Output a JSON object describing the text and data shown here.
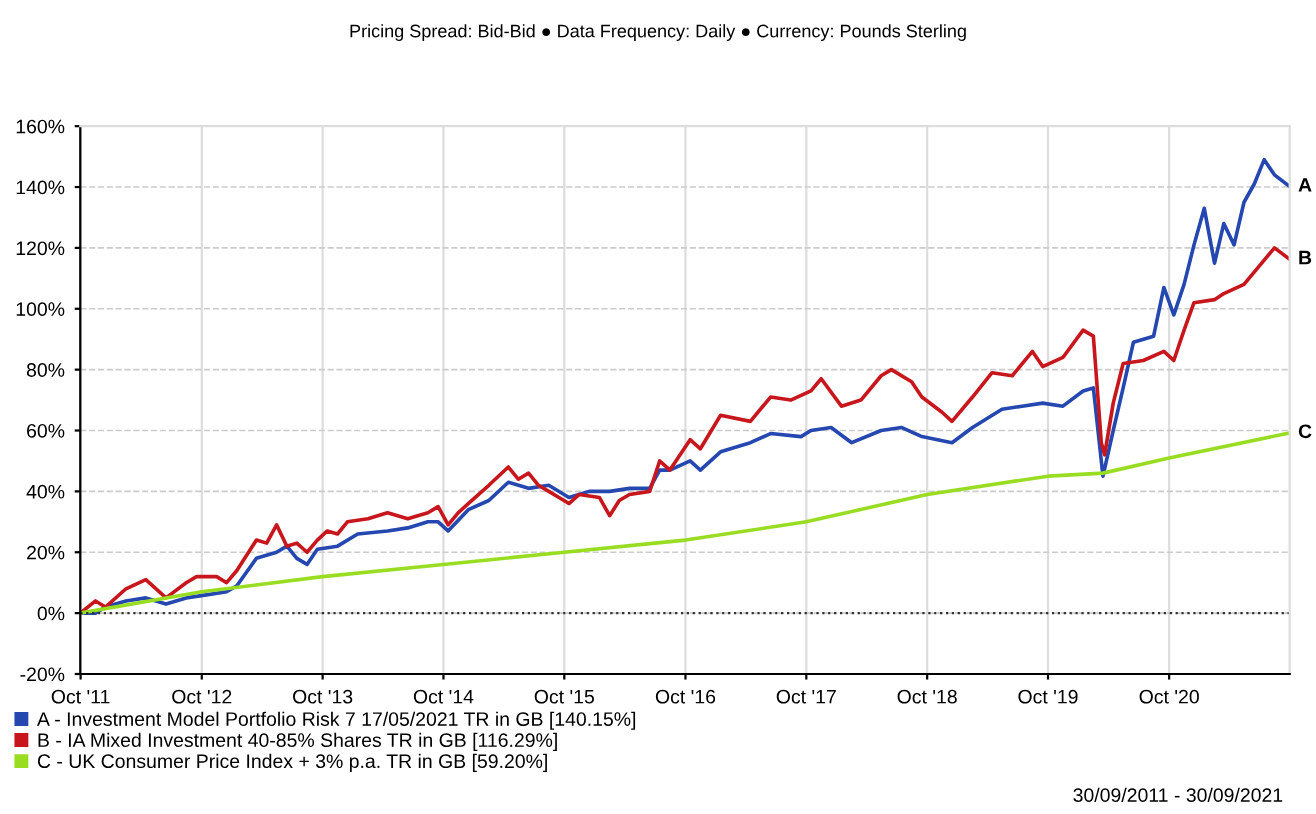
{
  "chart_data": {
    "type": "line",
    "title": "Pricing Spread: Bid-Bid ● Data Frequency: Daily ● Currency: Pounds Sterling",
    "xlim": [
      "2011-09-30",
      "2021-09-30"
    ],
    "xticks": [
      {
        "value": "2011-10-01",
        "label": "Oct '11"
      },
      {
        "value": "2012-10-01",
        "label": "Oct '12"
      },
      {
        "value": "2013-10-01",
        "label": "Oct '13"
      },
      {
        "value": "2014-10-01",
        "label": "Oct '14"
      },
      {
        "value": "2015-10-01",
        "label": "Oct '15"
      },
      {
        "value": "2016-10-01",
        "label": "Oct '16"
      },
      {
        "value": "2017-10-01",
        "label": "Oct '17"
      },
      {
        "value": "2018-10-01",
        "label": "Oct '18"
      },
      {
        "value": "2019-10-01",
        "label": "Oct '19"
      },
      {
        "value": "2020-10-01",
        "label": "Oct '20"
      }
    ],
    "ylim": [
      -20,
      160
    ],
    "yticks": [
      {
        "value": -20,
        "label": "-20%"
      },
      {
        "value": 0,
        "label": "0%"
      },
      {
        "value": 20,
        "label": "20%"
      },
      {
        "value": 40,
        "label": "40%"
      },
      {
        "value": 60,
        "label": "60%"
      },
      {
        "value": 80,
        "label": "80%"
      },
      {
        "value": 100,
        "label": "100%"
      },
      {
        "value": 120,
        "label": "120%"
      },
      {
        "value": 140,
        "label": "140%"
      },
      {
        "value": 160,
        "label": "160%"
      }
    ],
    "grid": true,
    "legend": "bottom",
    "line_style": "solid",
    "series": [
      {
        "name": "A - Investment Model Portfolio Risk 7 17/05/2021 TR in GB [140.15%]",
        "color": "#2447b0",
        "x": [
          "2011-09-30",
          "2011-11-15",
          "2011-12-15",
          "2012-02-15",
          "2012-04-15",
          "2012-06-15",
          "2012-08-15",
          "2012-10-15",
          "2012-12-15",
          "2013-01-15",
          "2013-03-15",
          "2013-05-15",
          "2013-06-15",
          "2013-07-15",
          "2013-08-15",
          "2013-09-15",
          "2013-11-15",
          "2014-01-15",
          "2014-04-15",
          "2014-06-15",
          "2014-08-15",
          "2014-09-15",
          "2014-10-15",
          "2014-12-15",
          "2015-02-15",
          "2015-04-15",
          "2015-06-15",
          "2015-08-15",
          "2015-10-15",
          "2015-12-15",
          "2016-02-15",
          "2016-04-15",
          "2016-06-15",
          "2016-07-15",
          "2016-08-15",
          "2016-10-15",
          "2016-11-15",
          "2017-01-15",
          "2017-04-15",
          "2017-06-15",
          "2017-09-15",
          "2017-10-15",
          "2017-12-15",
          "2018-02-15",
          "2018-05-15",
          "2018-07-15",
          "2018-09-15",
          "2018-12-15",
          "2019-02-15",
          "2019-05-15",
          "2019-07-15",
          "2019-09-15",
          "2019-11-15",
          "2020-01-15",
          "2020-02-15",
          "2020-03-15",
          "2020-04-15",
          "2020-05-15",
          "2020-06-15",
          "2020-08-15",
          "2020-09-15",
          "2020-10-15",
          "2020-11-15",
          "2020-12-15",
          "2021-01-15",
          "2021-02-15",
          "2021-03-15",
          "2021-04-15",
          "2021-05-15",
          "2021-06-15",
          "2021-07-15",
          "2021-08-15",
          "2021-09-30"
        ],
        "values": [
          0,
          0,
          2,
          4,
          5,
          3,
          5,
          6,
          7,
          9,
          18,
          20,
          22,
          18,
          16,
          21,
          22,
          26,
          27,
          28,
          30,
          30,
          27,
          34,
          37,
          43,
          41,
          42,
          38,
          40,
          40,
          41,
          41,
          47,
          47,
          50,
          47,
          53,
          56,
          59,
          58,
          60,
          61,
          56,
          60,
          61,
          58,
          56,
          61,
          67,
          68,
          69,
          68,
          73,
          74,
          45,
          60,
          74,
          89,
          91,
          107,
          98,
          108,
          121,
          133,
          115,
          128,
          121,
          135,
          141,
          149,
          144,
          140.15
        ]
      },
      {
        "name": "B - IA Mixed Investment 40-85% Shares TR in GB [116.29%]",
        "color": "#c8161d",
        "x": [
          "2011-09-30",
          "2011-11-15",
          "2011-12-15",
          "2012-02-15",
          "2012-04-15",
          "2012-06-15",
          "2012-08-15",
          "2012-09-15",
          "2012-11-15",
          "2012-12-15",
          "2013-01-15",
          "2013-03-15",
          "2013-04-15",
          "2013-05-15",
          "2013-06-15",
          "2013-07-15",
          "2013-08-15",
          "2013-09-15",
          "2013-10-15",
          "2013-11-15",
          "2013-12-15",
          "2014-02-15",
          "2014-04-15",
          "2014-06-15",
          "2014-08-15",
          "2014-09-15",
          "2014-10-15",
          "2014-11-15",
          "2014-12-15",
          "2015-02-15",
          "2015-04-15",
          "2015-05-15",
          "2015-06-15",
          "2015-07-15",
          "2015-08-15",
          "2015-09-15",
          "2015-10-15",
          "2015-11-15",
          "2016-01-15",
          "2016-02-15",
          "2016-03-15",
          "2016-04-15",
          "2016-06-15",
          "2016-07-15",
          "2016-08-15",
          "2016-10-15",
          "2016-11-15",
          "2017-01-15",
          "2017-04-15",
          "2017-06-15",
          "2017-08-15",
          "2017-10-15",
          "2017-11-15",
          "2018-01-15",
          "2018-03-15",
          "2018-05-15",
          "2018-06-15",
          "2018-08-15",
          "2018-09-15",
          "2018-11-15",
          "2018-12-15",
          "2019-02-15",
          "2019-04-15",
          "2019-06-15",
          "2019-08-15",
          "2019-09-15",
          "2019-11-15",
          "2020-01-15",
          "2020-02-15",
          "2020-03-10",
          "2020-03-20",
          "2020-04-15",
          "2020-05-15",
          "2020-07-15",
          "2020-09-15",
          "2020-10-15",
          "2020-11-15",
          "2020-12-15",
          "2021-02-15",
          "2021-03-15",
          "2021-05-15",
          "2021-07-15",
          "2021-08-15",
          "2021-09-30"
        ],
        "values": [
          0,
          4,
          2,
          8,
          11,
          5,
          10,
          12,
          12,
          10,
          14,
          24,
          23,
          29,
          22,
          23,
          20,
          24,
          27,
          26,
          30,
          31,
          33,
          31,
          33,
          35,
          29,
          33,
          36,
          42,
          48,
          44,
          46,
          42,
          40,
          38,
          36,
          39,
          38,
          32,
          37,
          39,
          40,
          50,
          47,
          57,
          54,
          65,
          63,
          71,
          70,
          73,
          77,
          68,
          70,
          78,
          80,
          76,
          71,
          66,
          63,
          71,
          79,
          78,
          86,
          81,
          84,
          93,
          91,
          56,
          52,
          69,
          82,
          83,
          86,
          83,
          93,
          102,
          103,
          105,
          108,
          116,
          120,
          116.29
        ]
      },
      {
        "name": "C - UK Consumer Price Index + 3% p.a. TR in GB [59.20%]",
        "color": "#99dd22",
        "x": [
          "2011-09-30",
          "2012-10-01",
          "2013-10-01",
          "2014-10-01",
          "2015-10-01",
          "2016-07-01",
          "2016-10-01",
          "2017-10-01",
          "2018-10-01",
          "2019-10-01",
          "2020-03-15",
          "2020-10-01",
          "2021-09-30"
        ],
        "values": [
          0,
          7,
          12,
          16,
          20,
          23,
          24,
          30,
          39,
          45,
          46,
          51,
          59.2
        ]
      }
    ],
    "ref_lines": [
      {
        "axis": "y",
        "value": 0,
        "color": "#333333",
        "line_style": "dotted"
      }
    ],
    "annotations": [
      {
        "text": "A",
        "x": "2021-09-30",
        "y": 140.15
      },
      {
        "text": "B",
        "x": "2021-09-30",
        "y": 116.29
      },
      {
        "text": "C",
        "x": "2021-09-30",
        "y": 59.2
      },
      "30/09/2011 - 30/09/2021"
    ]
  }
}
